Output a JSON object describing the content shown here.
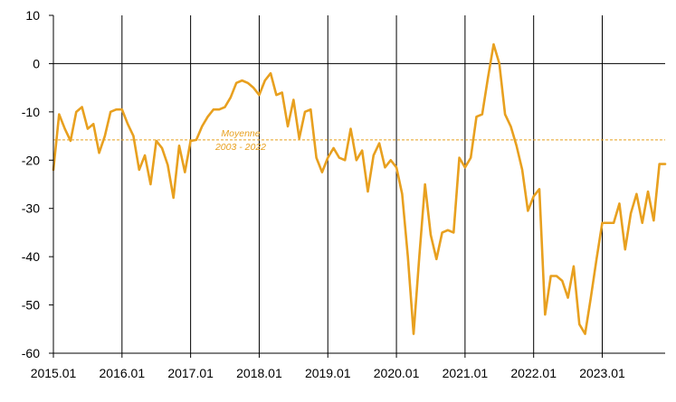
{
  "chart_data": {
    "type": "line",
    "title": "",
    "xlabel": "",
    "ylabel": "",
    "x_tick_labels": [
      "2015.01",
      "2016.01",
      "2017.01",
      "2018.01",
      "2019.01",
      "2020.01",
      "2021.01",
      "2022.01",
      "2023.01"
    ],
    "y_tick_labels": [
      "10",
      "0",
      "-10",
      "-20",
      "-30",
      "-40",
      "-50",
      "-60"
    ],
    "ylim": [
      -60,
      10
    ],
    "x_range": [
      "2015-01",
      "2023-12"
    ],
    "grid": "vertical lines at each year start",
    "zero_line": true,
    "colors": {
      "series": "#e8a01f",
      "grid": "#000000",
      "average": "#e8a01f"
    },
    "average_line": {
      "value": -15.8,
      "label_line1": "Moyenne",
      "label_line2": "2003 - 2022"
    },
    "series": [
      {
        "x": [
          "2015-01",
          "2015-02",
          "2015-03",
          "2015-04",
          "2015-05",
          "2015-06",
          "2015-07",
          "2015-08",
          "2015-09",
          "2015-10",
          "2015-11",
          "2015-12",
          "2016-01",
          "2016-02",
          "2016-03",
          "2016-04",
          "2016-05",
          "2016-06",
          "2016-07",
          "2016-08",
          "2016-09",
          "2016-10",
          "2016-11",
          "2016-12",
          "2017-01",
          "2017-02",
          "2017-03",
          "2017-04",
          "2017-05",
          "2017-06",
          "2017-07",
          "2017-08",
          "2017-09",
          "2017-10",
          "2017-11",
          "2017-12",
          "2018-01",
          "2018-02",
          "2018-03",
          "2018-04",
          "2018-05",
          "2018-06",
          "2018-07",
          "2018-08",
          "2018-09",
          "2018-10",
          "2018-11",
          "2018-12",
          "2019-01",
          "2019-02",
          "2019-03",
          "2019-04",
          "2019-05",
          "2019-06",
          "2019-07",
          "2019-08",
          "2019-09",
          "2019-10",
          "2019-11",
          "2019-12",
          "2020-01",
          "2020-02",
          "2020-03",
          "2020-04",
          "2020-05",
          "2020-06",
          "2020-07",
          "2020-08",
          "2020-09",
          "2020-10",
          "2020-11",
          "2020-12",
          "2021-01",
          "2021-02",
          "2021-03",
          "2021-04",
          "2021-05",
          "2021-06",
          "2021-07",
          "2021-08",
          "2021-09",
          "2021-10",
          "2021-11",
          "2021-12",
          "2022-01",
          "2022-02",
          "2022-03",
          "2022-04",
          "2022-05",
          "2022-06",
          "2022-07",
          "2022-08",
          "2022-09",
          "2022-10",
          "2022-11",
          "2022-12",
          "2023-01",
          "2023-02",
          "2023-03",
          "2023-04",
          "2023-05",
          "2023-06",
          "2023-07",
          "2023-08",
          "2023-09",
          "2023-10",
          "2023-11",
          "2023-12"
        ],
        "values": [
          -22,
          -10.5,
          -13.5,
          -16,
          -10,
          -9,
          -13.5,
          -12.5,
          -18.5,
          -15,
          -10,
          -9.5,
          -9.5,
          -12.5,
          -15,
          -22,
          -19,
          -25,
          -16,
          -17.5,
          -21,
          -27.8,
          -17,
          -22.5,
          -16,
          -15.8,
          -13,
          -11,
          -9.5,
          -9.5,
          -9,
          -7,
          -4,
          -3.5,
          -4,
          -5,
          -6.5,
          -3.5,
          -2,
          -6.5,
          -6,
          -13,
          -7.5,
          -15.5,
          -10,
          -9.5,
          -19.5,
          -22.5,
          -19.5,
          -17.5,
          -19.5,
          -20,
          -13.5,
          -20,
          -18,
          -26.5,
          -19,
          -16.5,
          -21.5,
          -20,
          -21.5,
          -27,
          -40,
          -56,
          -40,
          -25,
          -35.5,
          -40.5,
          -35,
          -34.5,
          -35,
          -19.5,
          -21.5,
          -19.5,
          -11,
          -10.5,
          -3,
          4,
          0,
          -10.5,
          -13,
          -17,
          -22,
          -30.5,
          -27.5,
          -26,
          -52,
          -44,
          -44,
          -45,
          -48.5,
          -42,
          -54,
          -56,
          -48.5,
          -40.5,
          -33,
          -33,
          -33,
          -29,
          -38.5,
          -31,
          -27,
          -33,
          -26.5,
          -32.5,
          -20.8,
          -20.8
        ]
      }
    ]
  }
}
